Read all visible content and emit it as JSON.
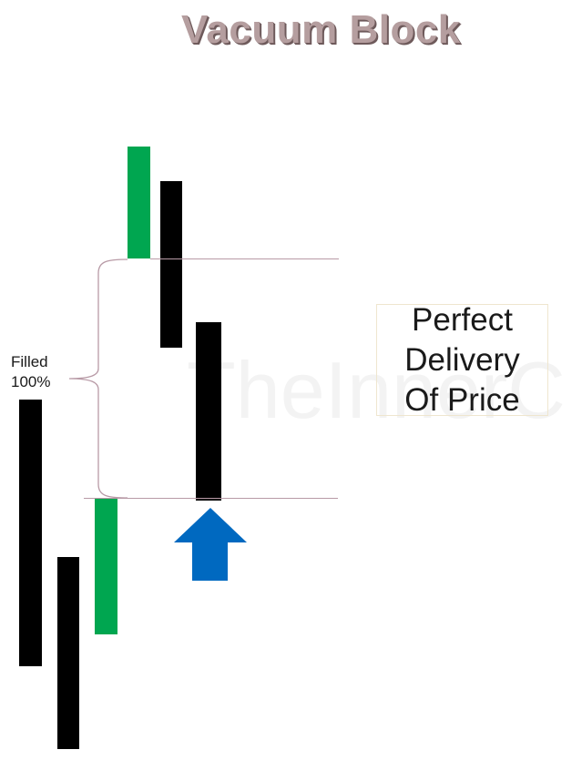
{
  "title": "Vacuum Block",
  "watermark": "TheInnerC",
  "annotation": {
    "line1": "Filled",
    "line2": "100%"
  },
  "callout": {
    "line1": "Perfect",
    "line2": "Delivery",
    "line3": "Of Price"
  },
  "colors": {
    "bullish": "#00a650",
    "bearish": "#000000",
    "arrow": "#0069c0",
    "level_line": "#b89aa6",
    "title": "#b59e9f"
  },
  "icons": {
    "up_arrow": "up-arrow-icon",
    "brace": "curly-brace"
  }
}
